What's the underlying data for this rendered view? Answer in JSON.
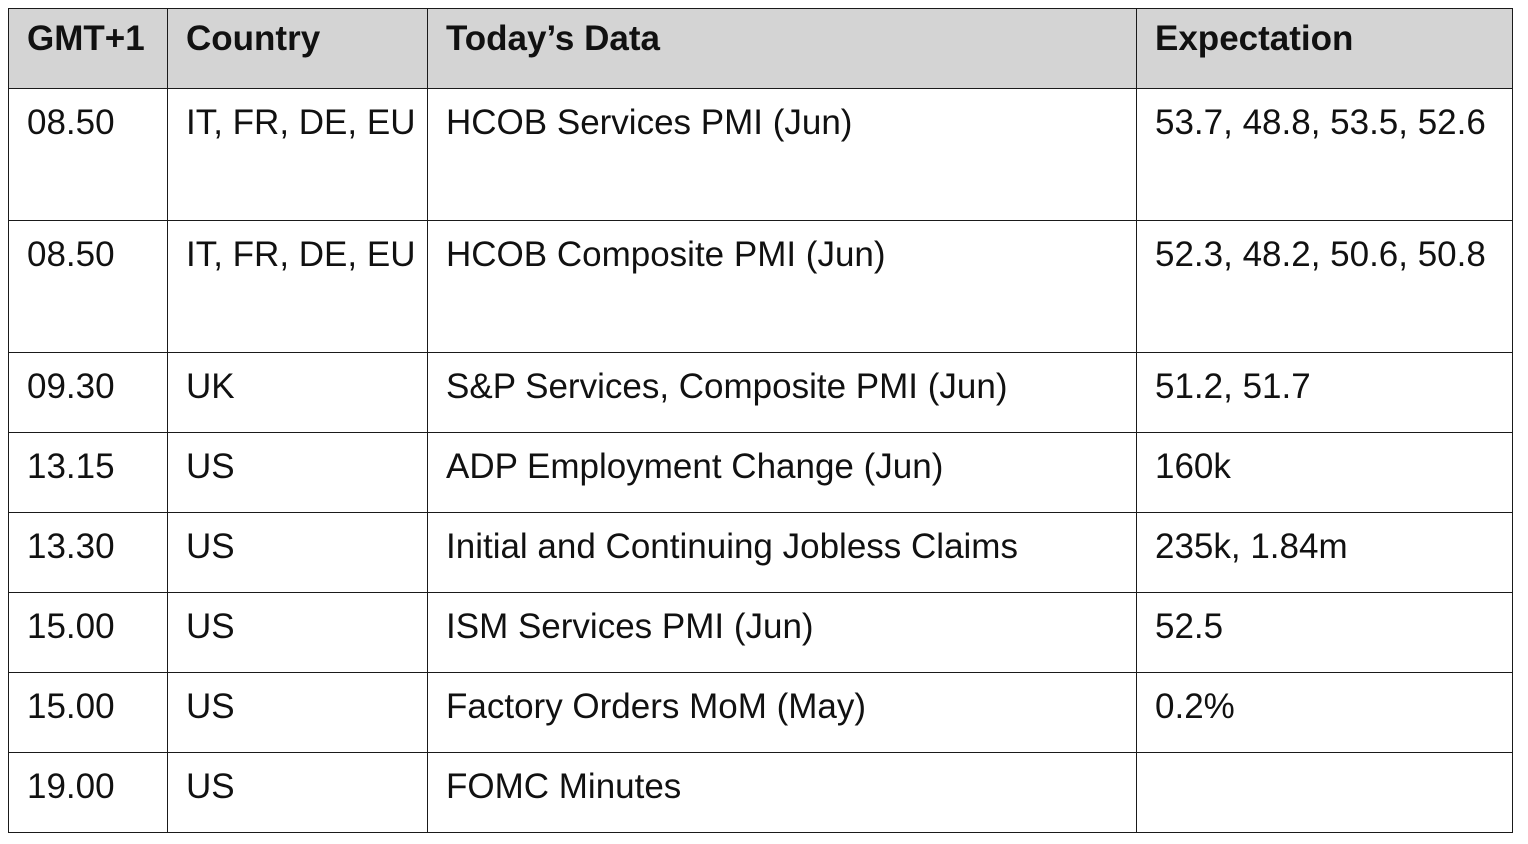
{
  "table": {
    "headers": {
      "time": "GMT+1",
      "country": "Country",
      "data": "Today’s Data",
      "expectation": "Expectation"
    },
    "rows": [
      {
        "time": "08.50",
        "country": "IT, FR, DE, EU",
        "data": "HCOB Services PMI (Jun)",
        "expectation": "53.7,     48.8,     53.5, 52.6"
      },
      {
        "time": "08.50",
        "country": "IT, FR, DE, EU",
        "data": "HCOB Composite PMI (Jun)",
        "expectation": "52.3,     48.2,     50.6, 50.8"
      },
      {
        "time": "09.30",
        "country": "UK",
        "data": "S&P Services, Composite PMI (Jun)",
        "expectation": "51.2, 51.7"
      },
      {
        "time": "13.15",
        "country": "US",
        "data": "ADP Employment Change (Jun)",
        "expectation": "160k"
      },
      {
        "time": "13.30",
        "country": "US",
        "data": "Initial and Continuing Jobless Claims",
        "expectation": "235k, 1.84m"
      },
      {
        "time": "15.00",
        "country": "US",
        "data": "ISM Services PMI (Jun)",
        "expectation": "52.5"
      },
      {
        "time": "15.00",
        "country": "US",
        "data": "Factory Orders MoM (May)",
        "expectation": "0.2%"
      },
      {
        "time": "19.00",
        "country": "US",
        "data": "FOMC Minutes",
        "expectation": ""
      }
    ]
  }
}
